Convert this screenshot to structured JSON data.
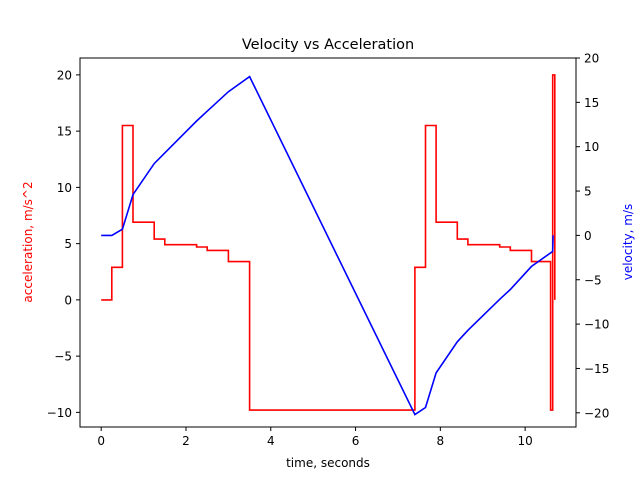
{
  "chart_data": {
    "type": "line",
    "title": "Velocity vs Acceleration",
    "xlabel": "time, seconds",
    "ylabel_left": "acceleration, m/s^2",
    "ylabel_right": "velocity, m/s",
    "xlim": [
      -0.5,
      11.2
    ],
    "ylim_left": [
      -11.3,
      21.5
    ],
    "ylim_right": [
      -21.6,
      20
    ],
    "xticks": [
      0,
      2,
      4,
      6,
      8,
      10
    ],
    "yticks_left": [
      -10,
      -5,
      0,
      5,
      10,
      15,
      20
    ],
    "yticks_right": [
      -20,
      -15,
      -10,
      -5,
      0,
      5,
      10,
      15,
      20
    ],
    "grid": false,
    "colors": {
      "acceleration": "#ff0000",
      "velocity": "#0000ff"
    },
    "series": [
      {
        "axis": "left",
        "step": true,
        "x": [
          0,
          0.25,
          0.5,
          0.75,
          1.25,
          1.5,
          2.25,
          2.5,
          3.0,
          3.5,
          7.4,
          7.65,
          7.9,
          8.4,
          8.65,
          9.4,
          9.65,
          10.15,
          10.6,
          10.65,
          10.7
        ],
        "y": [
          0,
          2.9,
          15.5,
          6.9,
          5.4,
          4.9,
          4.7,
          4.4,
          3.4,
          -9.8,
          2.9,
          15.5,
          6.9,
          5.4,
          4.9,
          4.7,
          4.4,
          3.4,
          -9.8,
          20,
          0
        ]
      },
      {
        "axis": "right",
        "x": [
          0,
          0.25,
          0.5,
          0.75,
          1.25,
          1.5,
          2.25,
          2.5,
          3.0,
          3.5,
          7.4,
          7.65,
          7.9,
          8.4,
          8.65,
          9.4,
          9.65,
          10.15,
          10.65,
          10.66
        ],
        "y": [
          0,
          0,
          0.7,
          4.6,
          8.1,
          9.3,
          12.9,
          14.0,
          16.2,
          17.9,
          -20.2,
          -19.4,
          -15.5,
          -12.0,
          -10.7,
          -7.2,
          -6.1,
          -3.5,
          -1.8,
          0
        ]
      }
    ]
  }
}
